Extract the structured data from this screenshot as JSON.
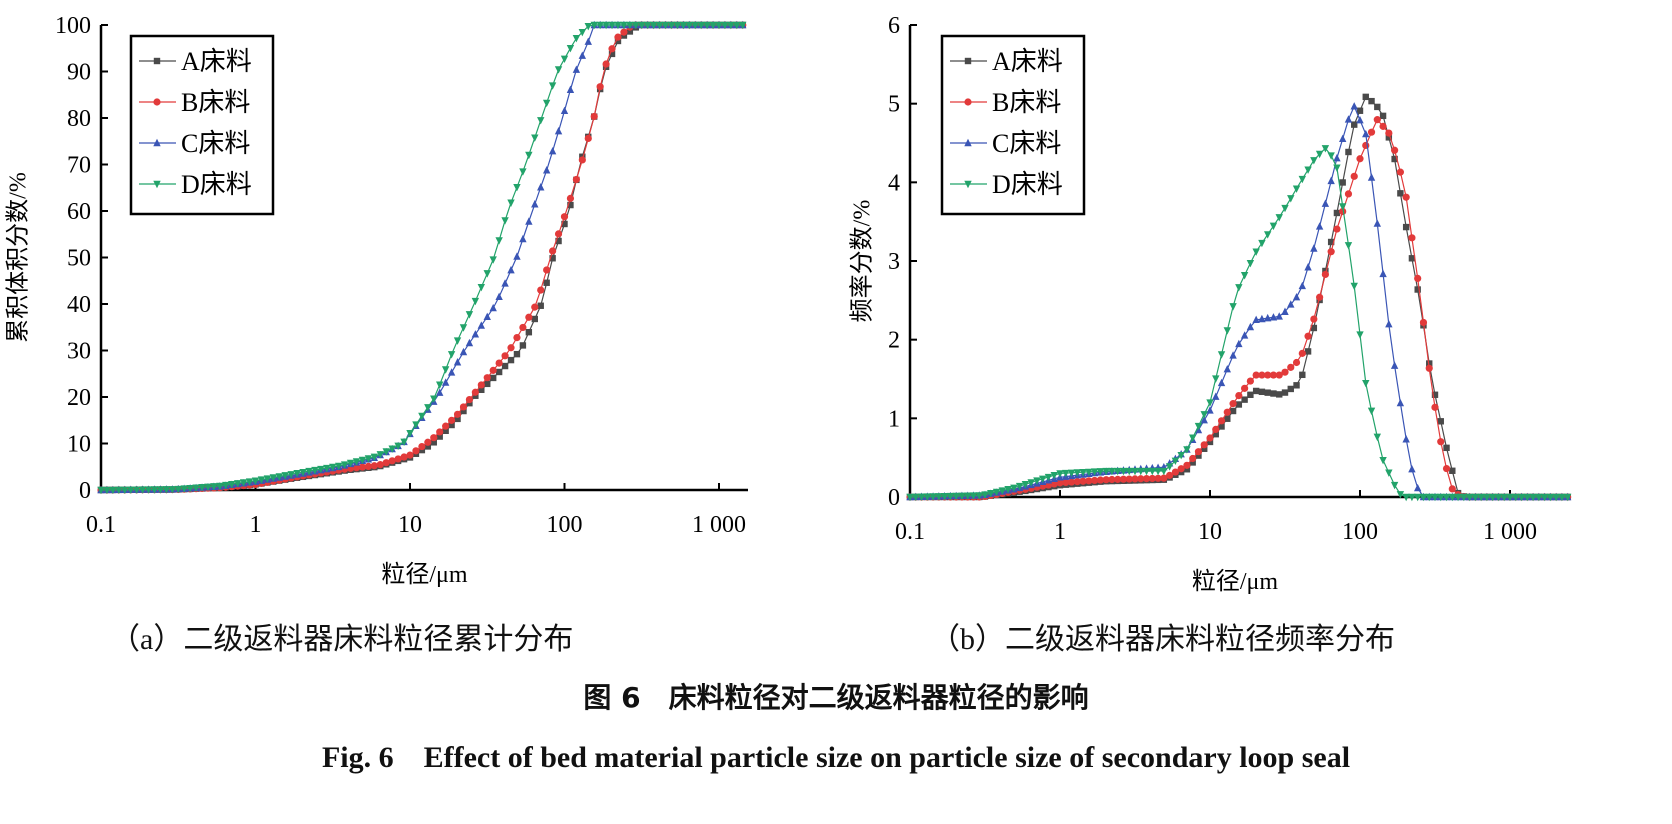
{
  "figure": {
    "title_cn": "图 6　床料粒径对二级返料器粒径的影响",
    "title_en": "Fig. 6　Effect of bed material particle size on particle size of secondary loop seal"
  },
  "colors": {
    "A": "#4a4a4a",
    "B": "#e23a3a",
    "C": "#3a55b5",
    "D": "#22a36a"
  },
  "chart_data": [
    {
      "type": "line",
      "caption": "（a）二级返料器床料粒径累计分布",
      "xlabel": "粒径/μm",
      "ylabel": "累积体积分数/%",
      "xscale": "log",
      "xlim": [
        0.1,
        1500
      ],
      "ylim": [
        0,
        100
      ],
      "xticks": [
        0.1,
        1,
        10,
        100,
        1000
      ],
      "xtick_labels": [
        "0.1",
        "1",
        "10",
        "100",
        "1 000"
      ],
      "yticks": [
        0,
        10,
        20,
        30,
        40,
        50,
        60,
        70,
        80,
        90,
        100
      ],
      "ytick_labels": [
        "0",
        "10",
        "20",
        "30",
        "40",
        "50",
        "60",
        "70",
        "80",
        "90",
        "100"
      ],
      "legend_position": "top-left",
      "series": [
        {
          "name": "A床料",
          "marker": "square",
          "color": "#4a4a4a",
          "points": [
            [
              0.1,
              0
            ],
            [
              0.3,
              0.1
            ],
            [
              0.6,
              0.5
            ],
            [
              1,
              1.2
            ],
            [
              2,
              2.8
            ],
            [
              4,
              4.3
            ],
            [
              6.2,
              5
            ],
            [
              10,
              7
            ],
            [
              14,
              10
            ],
            [
              20,
              15
            ],
            [
              26,
              20
            ],
            [
              52,
              30
            ],
            [
              71,
              40
            ],
            [
              84,
              50
            ],
            [
              107,
              60
            ],
            [
              126,
              70
            ],
            [
              155,
              80
            ],
            [
              180,
              90
            ],
            [
              225,
              97
            ],
            [
              305,
              100
            ],
            [
              1500,
              100
            ]
          ]
        },
        {
          "name": "B床料",
          "marker": "circle",
          "color": "#e23a3a",
          "points": [
            [
              0.1,
              0
            ],
            [
              0.3,
              0.1
            ],
            [
              0.6,
              0.5
            ],
            [
              1,
              1.2
            ],
            [
              2,
              3
            ],
            [
              4,
              4.6
            ],
            [
              6.2,
              5.3
            ],
            [
              10,
              7.5
            ],
            [
              14,
              11
            ],
            [
              20,
              16
            ],
            [
              25,
              20
            ],
            [
              44,
              30
            ],
            [
              66,
              40
            ],
            [
              81,
              50
            ],
            [
              103,
              60
            ],
            [
              128,
              70
            ],
            [
              155,
              80
            ],
            [
              178,
              90
            ],
            [
              215,
              97
            ],
            [
              275,
              100
            ],
            [
              1500,
              100
            ]
          ]
        },
        {
          "name": "C床料",
          "marker": "triangle-up",
          "color": "#3a55b5",
          "points": [
            [
              0.1,
              0
            ],
            [
              0.3,
              0.15
            ],
            [
              0.6,
              0.8
            ],
            [
              1,
              1.8
            ],
            [
              2,
              3.5
            ],
            [
              3.5,
              5
            ],
            [
              6,
              7
            ],
            [
              9,
              10
            ],
            [
              15,
              20
            ],
            [
              22.5,
              30
            ],
            [
              36,
              40
            ],
            [
              49,
              50
            ],
            [
              62,
              60
            ],
            [
              79,
              70
            ],
            [
              97,
              80
            ],
            [
              118,
              90
            ],
            [
              145,
              97
            ],
            [
              155,
              100
            ],
            [
              1500,
              100
            ]
          ]
        },
        {
          "name": "D床料",
          "marker": "triangle-down",
          "color": "#22a36a",
          "points": [
            [
              0.1,
              0
            ],
            [
              0.3,
              0.15
            ],
            [
              0.6,
              0.9
            ],
            [
              1,
              2
            ],
            [
              2,
              3.8
            ],
            [
              3.5,
              5.2
            ],
            [
              6,
              7.2
            ],
            [
              9,
              10
            ],
            [
              14.5,
              20
            ],
            [
              19,
              30
            ],
            [
              26,
              40
            ],
            [
              35,
              50
            ],
            [
              43,
              60
            ],
            [
              56,
              70
            ],
            [
              71,
              80
            ],
            [
              90,
              90
            ],
            [
              118,
              97
            ],
            [
              145,
              100
            ],
            [
              1500,
              100
            ]
          ]
        }
      ]
    },
    {
      "type": "line",
      "caption": "（b）二级返料器床料粒径频率分布",
      "xlabel": "粒径/μm",
      "ylabel": "频率分数/%",
      "xscale": "log",
      "xlim": [
        0.1,
        2500
      ],
      "ylim": [
        0,
        6
      ],
      "xticks": [
        0.1,
        1,
        10,
        100,
        1000
      ],
      "xtick_labels": [
        "0.1",
        "1",
        "10",
        "100",
        "1 000"
      ],
      "yticks": [
        0,
        1,
        2,
        3,
        4,
        5,
        6
      ],
      "ytick_labels": [
        "0",
        "1",
        "2",
        "3",
        "4",
        "5",
        "6"
      ],
      "legend_position": "top-left",
      "series": [
        {
          "name": "A床料",
          "marker": "square",
          "color": "#4a4a4a",
          "points": [
            [
              0.1,
              0
            ],
            [
              0.3,
              0
            ],
            [
              0.6,
              0.08
            ],
            [
              1,
              0.15
            ],
            [
              2,
              0.2
            ],
            [
              5,
              0.22
            ],
            [
              7,
              0.35
            ],
            [
              10,
              0.7
            ],
            [
              15,
              1.15
            ],
            [
              20,
              1.35
            ],
            [
              30,
              1.3
            ],
            [
              40,
              1.45
            ],
            [
              50,
              2.2
            ],
            [
              70,
              3.6
            ],
            [
              90,
              4.7
            ],
            [
              110,
              5.1
            ],
            [
              140,
              4.9
            ],
            [
              170,
              4.3
            ],
            [
              200,
              3.5
            ],
            [
              250,
              2.5
            ],
            [
              300,
              1.5
            ],
            [
              380,
              0.6
            ],
            [
              450,
              0.05
            ],
            [
              500,
              0
            ],
            [
              2500,
              0
            ]
          ]
        },
        {
          "name": "B床料",
          "marker": "circle",
          "color": "#e23a3a",
          "points": [
            [
              0.1,
              0
            ],
            [
              0.3,
              0
            ],
            [
              0.6,
              0.1
            ],
            [
              1,
              0.18
            ],
            [
              2,
              0.22
            ],
            [
              5,
              0.24
            ],
            [
              7,
              0.4
            ],
            [
              10,
              0.75
            ],
            [
              15,
              1.25
            ],
            [
              20,
              1.55
            ],
            [
              30,
              1.55
            ],
            [
              40,
              1.75
            ],
            [
              50,
              2.3
            ],
            [
              70,
              3.4
            ],
            [
              100,
              4.3
            ],
            [
              130,
              4.8
            ],
            [
              160,
              4.6
            ],
            [
              200,
              3.9
            ],
            [
              250,
              2.6
            ],
            [
              300,
              1.4
            ],
            [
              360,
              0.5
            ],
            [
              420,
              0.05
            ],
            [
              500,
              0
            ],
            [
              2500,
              0
            ]
          ]
        },
        {
          "name": "C床料",
          "marker": "triangle-up",
          "color": "#3a55b5",
          "points": [
            [
              0.1,
              0
            ],
            [
              0.3,
              0.02
            ],
            [
              0.5,
              0.1
            ],
            [
              1,
              0.25
            ],
            [
              2,
              0.32
            ],
            [
              5,
              0.38
            ],
            [
              7,
              0.6
            ],
            [
              10,
              1.1
            ],
            [
              15,
              1.9
            ],
            [
              20,
              2.25
            ],
            [
              30,
              2.3
            ],
            [
              40,
              2.6
            ],
            [
              50,
              3.2
            ],
            [
              70,
              4.3
            ],
            [
              90,
              5.0
            ],
            [
              110,
              4.6
            ],
            [
              130,
              3.5
            ],
            [
              160,
              2.0
            ],
            [
              200,
              0.8
            ],
            [
              230,
              0.2
            ],
            [
              260,
              0
            ],
            [
              2500,
              0
            ]
          ]
        },
        {
          "name": "D床料",
          "marker": "triangle-down",
          "color": "#22a36a",
          "points": [
            [
              0.1,
              0
            ],
            [
              0.3,
              0.02
            ],
            [
              0.5,
              0.12
            ],
            [
              1,
              0.3
            ],
            [
              2,
              0.33
            ],
            [
              5,
              0.33
            ],
            [
              7,
              0.6
            ],
            [
              10,
              1.2
            ],
            [
              15,
              2.6
            ],
            [
              20,
              3.1
            ],
            [
              30,
              3.6
            ],
            [
              40,
              4.0
            ],
            [
              50,
              4.3
            ],
            [
              60,
              4.45
            ],
            [
              70,
              4.2
            ],
            [
              90,
              2.8
            ],
            [
              110,
              1.4
            ],
            [
              140,
              0.5
            ],
            [
              180,
              0.05
            ],
            [
              200,
              0
            ],
            [
              2500,
              0
            ]
          ]
        }
      ]
    }
  ]
}
